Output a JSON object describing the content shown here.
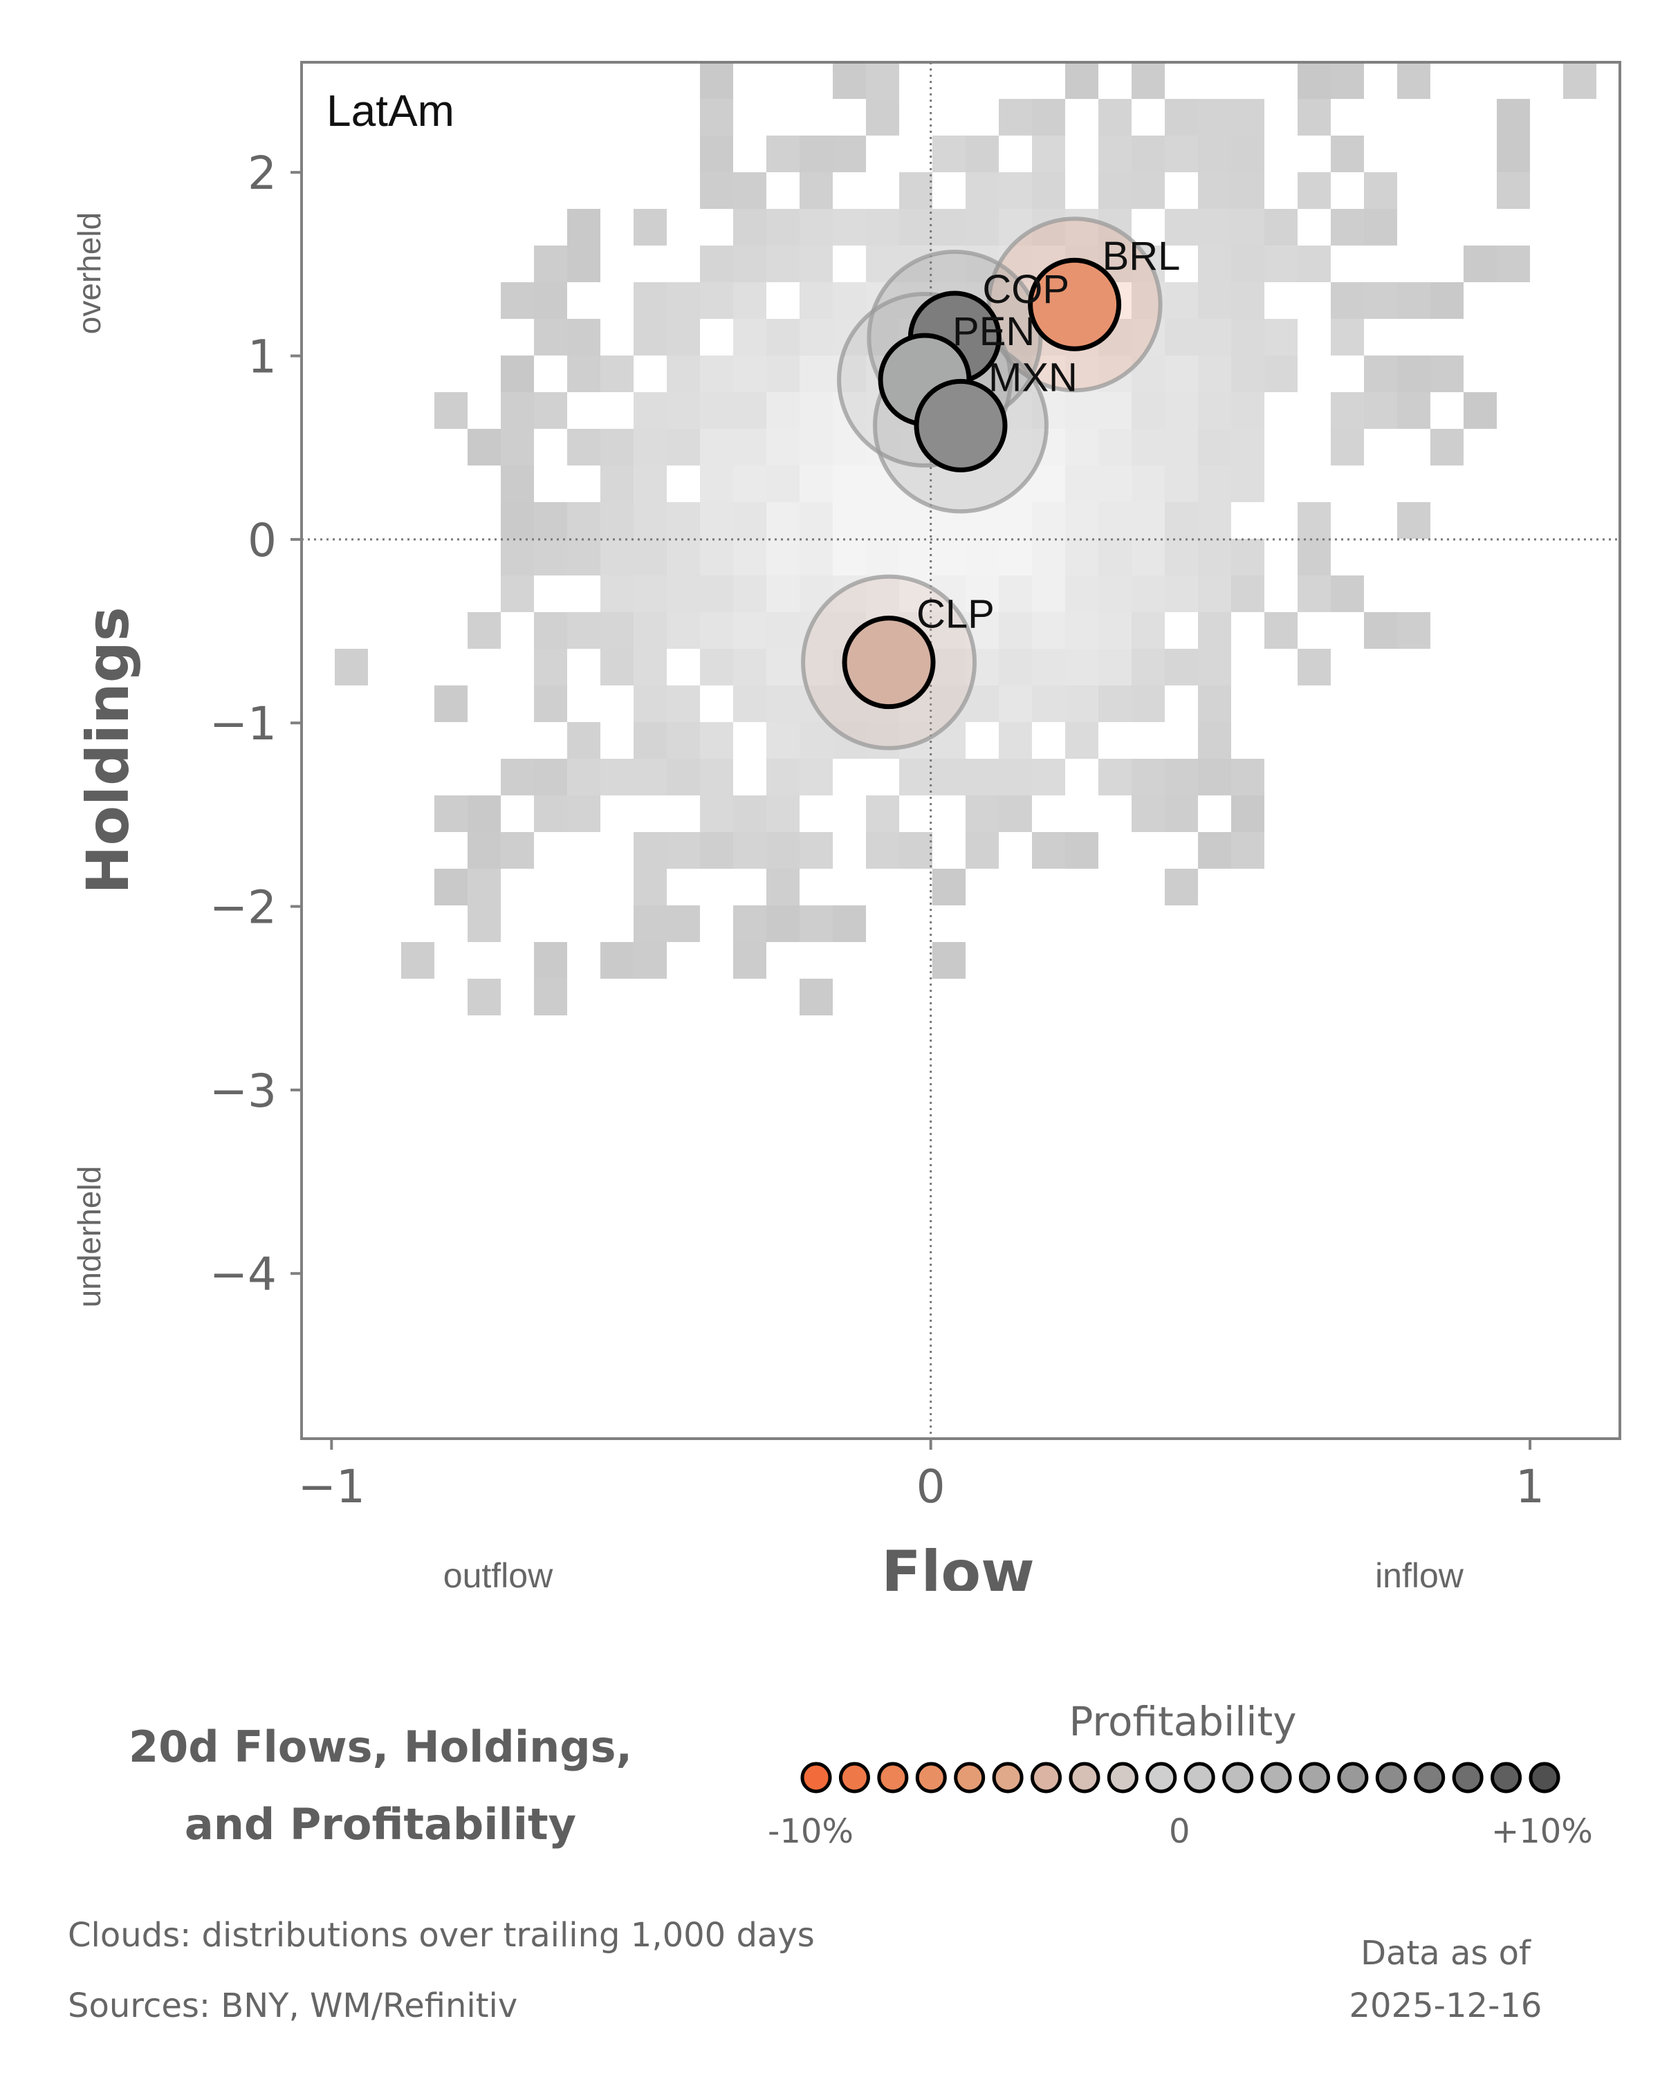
{
  "chart_data": {
    "type": "scatter",
    "panel_label": "LatAm",
    "xlabel": "Flow",
    "ylabel": "Holdings",
    "x_axis_labels": {
      "left": "outflow",
      "right": "inflow"
    },
    "y_axis_labels": {
      "top": "overheld",
      "bottom": "underheld"
    },
    "xlim": [
      -1.05,
      1.15
    ],
    "ylim": [
      -4.9,
      2.6
    ],
    "xticks": [
      -1,
      0,
      1
    ],
    "xtick_labels": [
      "−1",
      "0",
      "1"
    ],
    "yticks": [
      2,
      1,
      0,
      -1,
      -2,
      -3,
      -4
    ],
    "ytick_labels": [
      "2",
      "1",
      "0",
      "−1",
      "−2",
      "−3",
      "−4"
    ],
    "reference_lines": {
      "x": 0,
      "y": 0
    },
    "points": [
      {
        "label": "BRL",
        "x": 0.24,
        "y": 1.28,
        "profitability": -7.0,
        "color": "#e8936f"
      },
      {
        "label": "COP",
        "x": 0.04,
        "y": 1.1,
        "profitability": 8.5,
        "color": "#7d7d7d"
      },
      {
        "label": "PEN",
        "x": -0.01,
        "y": 0.87,
        "profitability": 3.5,
        "color": "#a7aaa9"
      },
      {
        "label": "MXN",
        "x": 0.05,
        "y": 0.62,
        "profitability": 6.5,
        "color": "#8c8c8c"
      },
      {
        "label": "CLP",
        "x": -0.07,
        "y": -0.67,
        "profitability": -3.5,
        "color": "#d6b2a3"
      }
    ],
    "legend": {
      "title": "Profitability",
      "tick_labels": [
        "-10%",
        "0",
        "+10%"
      ],
      "colors": [
        "#f26c3b",
        "#ef7848",
        "#ec8455",
        "#e89063",
        "#e49c74",
        "#e0a98a",
        "#dbb4a3",
        "#d6bfb5",
        "#d3c9c5",
        "#cfcfcf",
        "#c7c7c7",
        "#bebebe",
        "#b3b3b3",
        "#a6a6a6",
        "#999999",
        "#8b8b8b",
        "#7c7c7c",
        "#6e6e6e",
        "#5f5f5f",
        "#505050"
      ]
    }
  },
  "title": "20d Flows, Holdings, and Profitability",
  "title_lines": [
    "20d Flows, Holdings,",
    "and Profitability"
  ],
  "footer": {
    "clouds": "Clouds:  distributions over trailing 1,000 days",
    "sources": "Sources:  BNY, WM/Refinitiv",
    "date_label": "Data as of",
    "date": "2025-12-16"
  }
}
